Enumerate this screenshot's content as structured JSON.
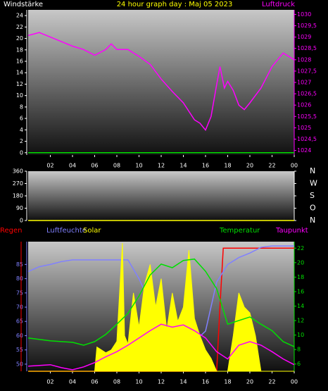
{
  "title": "24 hour graph day : Maj 05 2023",
  "chart_data": [
    {
      "type": "line",
      "ylabel": "Windstärke",
      "y2label": "Luftdruck",
      "x": [
        0,
        1,
        2,
        3,
        4,
        5,
        6,
        7,
        7.5,
        8,
        9,
        10,
        11,
        12,
        13,
        14,
        15,
        15.5,
        16,
        16.5,
        17,
        17.3,
        17.7,
        18,
        18.5,
        19,
        19.5,
        20,
        21,
        22,
        23,
        24
      ],
      "xlim": [
        0,
        24
      ],
      "xticks": [
        {
          "value": 2,
          "label": "02"
        },
        {
          "value": 4,
          "label": "04"
        },
        {
          "value": 6,
          "label": "06"
        },
        {
          "value": 8,
          "label": "08"
        },
        10,
        12,
        14,
        16,
        18,
        20,
        22,
        {
          "value": 24,
          "label": "00"
        }
      ],
      "ylim": [
        -0.4,
        25
      ],
      "yticks": [
        0,
        2,
        4,
        6,
        8,
        10,
        12,
        14,
        16,
        18,
        20,
        22,
        24
      ],
      "y2lim": [
        1023.8,
        1030.2
      ],
      "y2ticks": [
        1024,
        {
          "value": 1024.5,
          "label": "1024,5"
        },
        1025,
        {
          "value": 1025.5,
          "label": "1025,5"
        },
        1026,
        {
          "value": 1026.5,
          "label": "1026,5"
        },
        1027,
        {
          "value": 1027.5,
          "label": "1027,5"
        },
        1028,
        {
          "value": 1028.5,
          "label": "1028,5"
        },
        1029,
        {
          "value": 1029.5,
          "label": "1029,5"
        },
        1030
      ],
      "series": [
        {
          "color": "#00e000",
          "x": [
            0,
            24
          ],
          "values": [
            0,
            0
          ]
        },
        {
          "color": "#ff00ff",
          "axis": "y2",
          "values": [
            1029.07,
            1029.2,
            1029.0,
            1028.8,
            1028.6,
            1028.45,
            1028.2,
            1028.45,
            1028.7,
            1028.45,
            1028.45,
            1028.15,
            1027.8,
            1027.15,
            1026.6,
            1026.1,
            1025.35,
            1025.2,
            1024.9,
            1025.5,
            1026.9,
            1027.7,
            1026.75,
            1027.05,
            1026.65,
            1026.0,
            1025.8,
            1026.1,
            1026.75,
            1027.7,
            1028.3,
            1028.0
          ]
        }
      ]
    },
    {
      "type": "line",
      "xlim": [
        0,
        24
      ],
      "ylim": [
        0,
        360
      ],
      "yticks": [
        0,
        90,
        180,
        270,
        360
      ],
      "y2lim": [
        0,
        360
      ],
      "y2ticks": [
        {
          "value": 0,
          "label": "N"
        },
        {
          "value": 90,
          "label": "O"
        },
        {
          "value": 180,
          "label": "S"
        },
        {
          "value": 270,
          "label": "W"
        },
        {
          "value": 360,
          "label": "N"
        }
      ],
      "series": [
        {
          "color": "#ffff00",
          "x": [
            0,
            24
          ],
          "values": [
            0,
            0
          ]
        }
      ]
    },
    {
      "type": "line",
      "x": [
        0,
        1,
        2,
        3,
        4,
        5,
        6,
        7,
        8,
        9,
        10,
        11,
        12,
        13,
        14,
        15,
        16,
        17,
        18,
        19,
        20,
        21,
        22,
        23,
        24
      ],
      "xlim": [
        0,
        24
      ],
      "xticks": [
        {
          "value": 2,
          "label": "02"
        },
        {
          "value": 4,
          "label": "04"
        },
        {
          "value": 6,
          "label": "06"
        },
        {
          "value": 8,
          "label": "08"
        },
        10,
        12,
        14,
        16,
        18,
        20,
        22,
        {
          "value": 24,
          "label": "00"
        }
      ],
      "ylim": [
        47.5,
        93
      ],
      "yticks": [
        50,
        55,
        60,
        65,
        70,
        75,
        80,
        85
      ],
      "y2lim": [
        5,
        22.9
      ],
      "y2ticks": [
        6,
        8,
        10,
        12,
        14,
        16,
        18,
        20,
        22
      ],
      "y3lim": [
        0,
        1
      ],
      "series": [
        {
          "name": "Regen",
          "color": "#ff0000",
          "axis": "y3",
          "x": [
            0,
            17,
            17.3,
            17.6,
            24
          ],
          "values": [
            0,
            0,
            0.5,
            0.95,
            0.95
          ]
        },
        {
          "name": "Luftfeuchte",
          "color": "#8080ff",
          "values": [
            82.5,
            84.2,
            85,
            86,
            86.6,
            86.6,
            86.6,
            86.6,
            86.6,
            86.6,
            80,
            71.4,
            64,
            60.3,
            59,
            58,
            61.6,
            78.8,
            85,
            87.4,
            89,
            91,
            91.5,
            91.5,
            91.5
          ]
        },
        {
          "name": "Solar",
          "color": "#ffff00",
          "type": "area",
          "x": [
            0,
            6,
            6.2,
            7,
            7.5,
            8,
            8.5,
            8.7,
            9,
            9.5,
            10,
            10.5,
            11,
            11.5,
            12,
            12.5,
            13,
            13.5,
            14,
            14.5,
            15,
            15.5,
            16,
            16.5,
            17,
            17.3,
            18,
            18.5,
            19,
            19.5,
            20,
            20.5,
            21,
            24
          ],
          "values": [
            47.5,
            47.5,
            56,
            54,
            55,
            58,
            92.5,
            60,
            57,
            75,
            63,
            78,
            85,
            70,
            80,
            62,
            75,
            65,
            70,
            90,
            66,
            60,
            55,
            52,
            47.5,
            47.5,
            47.5,
            60,
            75,
            70,
            68,
            60,
            47.5,
            47.5
          ]
        },
        {
          "name": "Temperatur",
          "color": "#00e000",
          "axis": "y2",
          "values": [
            9.6,
            9.4,
            9.2,
            9.1,
            9.0,
            8.6,
            9.1,
            10.1,
            11.5,
            13,
            15.4,
            18.3,
            19.8,
            19.3,
            20.3,
            20.5,
            18.8,
            16.4,
            11.5,
            12,
            12.5,
            11.5,
            10.6,
            9.1,
            8.4
          ]
        },
        {
          "name": "Taupunkt",
          "color": "#ff00ff",
          "axis": "y2",
          "values": [
            5.7,
            5.8,
            5.9,
            5.5,
            5.2,
            5.6,
            6.2,
            7,
            7.7,
            8.6,
            9.6,
            10.6,
            11.5,
            11.1,
            11.4,
            10.6,
            9.6,
            7.7,
            6.7,
            8.6,
            9.1,
            8.6,
            7.7,
            6.7,
            5.9
          ]
        }
      ]
    }
  ]
}
